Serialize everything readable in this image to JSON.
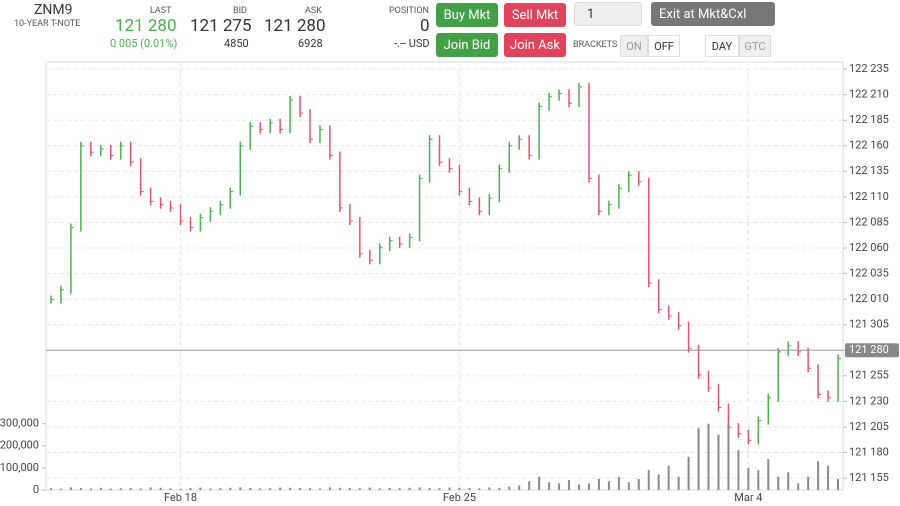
{
  "header": {
    "symbol": "ZNM9",
    "description": "10-YEAR T-NOTE",
    "last_label": "LAST",
    "last": "121 280",
    "change": "0 005 (0.01%)",
    "bid_label": "BID",
    "bid": "121 275",
    "bid_size": "4850",
    "ask_label": "ASK",
    "ask": "121 280",
    "ask_size": "6928",
    "position_label": "POSITION",
    "position": "0",
    "pnl": "-.-- USD",
    "buy_mkt": "Buy Mkt",
    "sell_mkt": "Sell Mkt",
    "join_bid": "Join Bid",
    "join_ask": "Join Ask",
    "quantity": "1",
    "exit": "Exit at Mkt&Cxl",
    "brackets_label": "BRACKETS",
    "on": "ON",
    "off": "OFF",
    "day": "DAY",
    "gtc": "GTC"
  },
  "chart_data": {
    "type": "bar",
    "categories": [
      null,
      null,
      null,
      null,
      null,
      null,
      null,
      null,
      null,
      null,
      null,
      null,
      null,
      "Feb 18",
      null,
      null,
      null,
      null,
      null,
      null,
      null,
      null,
      null,
      null,
      null,
      null,
      null,
      null,
      null,
      null,
      null,
      null,
      null,
      null,
      null,
      null,
      null,
      null,
      null,
      null,
      null,
      "Feb 25",
      null,
      null,
      null,
      null,
      null,
      null,
      null,
      null,
      null,
      null,
      null,
      null,
      null,
      null,
      null,
      null,
      null,
      null,
      null,
      null,
      null,
      null,
      null,
      null,
      null,
      null,
      null,
      null,
      "Mar 4",
      null,
      null,
      null,
      null,
      null,
      null,
      null,
      null,
      null
    ],
    "series": [
      {
        "axis": "y",
        "up_color": "#4caf50",
        "down_color": "#e05470",
        "values": [
          122.03,
          122.06,
          122.25,
          122.5,
          122.48,
          122.49,
          122.47,
          122.5,
          122.45,
          122.36,
          122.33,
          122.32,
          122.31,
          122.27,
          122.25,
          122.28,
          122.3,
          122.32,
          122.36,
          122.5,
          122.56,
          122.55,
          122.57,
          122.55,
          122.64,
          122.6,
          122.52,
          122.55,
          122.47,
          122.31,
          122.27,
          122.17,
          122.15,
          122.19,
          122.21,
          122.2,
          122.22,
          122.4,
          122.52,
          122.45,
          122.43,
          122.36,
          122.33,
          122.3,
          122.34,
          122.43,
          122.5,
          122.52,
          122.47,
          122.62,
          122.65,
          122.66,
          122.63,
          122.68,
          122.4,
          122.3,
          122.32,
          122.37,
          122.41,
          122.39,
          122.08,
          122.0,
          121.98,
          121.95,
          121.88,
          121.8,
          121.76,
          121.7,
          121.64,
          121.62,
          121.6,
          121.66,
          121.73,
          121.87,
          121.89,
          121.87,
          121.82,
          121.74,
          121.73,
          121.85
        ]
      },
      {
        "axis": "y2",
        "color": "#8a8a8a",
        "values": [
          8000,
          6000,
          12000,
          9000,
          7000,
          10000,
          6000,
          8000,
          9000,
          7000,
          12000,
          10000,
          8000,
          6000,
          9000,
          11000,
          7000,
          8000,
          10000,
          12000,
          9000,
          7000,
          8000,
          11000,
          10000,
          9000,
          8000,
          7000,
          12000,
          10000,
          9000,
          8000,
          11000,
          7000,
          9000,
          8000,
          10000,
          12000,
          9000,
          8000,
          11000,
          10000,
          9000,
          8000,
          12000,
          10000,
          15000,
          20000,
          40000,
          60000,
          35000,
          30000,
          45000,
          25000,
          30000,
          50000,
          40000,
          60000,
          35000,
          50000,
          90000,
          70000,
          110000,
          60000,
          150000,
          280000,
          300000,
          250000,
          300000,
          180000,
          100000,
          90000,
          140000,
          60000,
          80000,
          30000,
          60000,
          130000,
          110000,
          50000
        ]
      }
    ],
    "ylim": [
      121.448,
      122.756
    ],
    "yticks": [
      {
        "value": 121.484375,
        "label": "121 155"
      },
      {
        "value": 121.5625,
        "label": "121 180"
      },
      {
        "value": 121.640625,
        "label": "121 205"
      },
      {
        "value": 121.71875,
        "label": "121 230"
      },
      {
        "value": 121.796875,
        "label": "121 255"
      },
      {
        "value": 121.875,
        "label": "121 280"
      },
      {
        "value": 121.953125,
        "label": "121 305"
      },
      {
        "value": 122.03125,
        "label": "122 010"
      },
      {
        "value": 122.109375,
        "label": "122 035"
      },
      {
        "value": 122.1875,
        "label": "122 060"
      },
      {
        "value": 122.265625,
        "label": "122 085"
      },
      {
        "value": 122.34375,
        "label": "122 110"
      },
      {
        "value": 122.421875,
        "label": "122 135"
      },
      {
        "value": 122.5,
        "label": "122 160"
      },
      {
        "value": 122.578125,
        "label": "122 185"
      },
      {
        "value": 122.65625,
        "label": "122 210"
      },
      {
        "value": 122.734375,
        "label": "122 235"
      }
    ],
    "y2lim": [
      0,
      1936000
    ],
    "y2ticks": [
      0,
      {
        "value": 100000,
        "label": "100,000"
      },
      {
        "value": 200000,
        "label": "200,000"
      },
      {
        "value": 300000,
        "label": "300,000"
      }
    ],
    "last_price": {
      "value": 121.875,
      "label": "121 280"
    },
    "grid": true
  }
}
